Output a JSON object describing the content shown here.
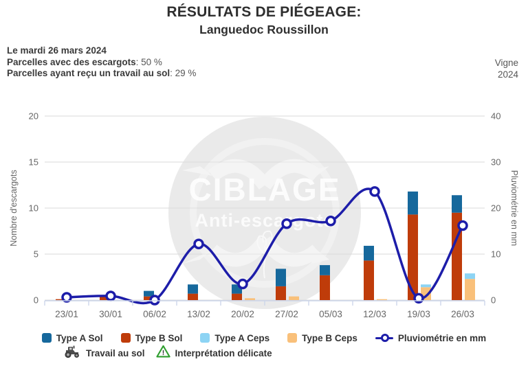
{
  "header": {
    "title": "RÉSULTATS DE PIÉGEAGE:",
    "subtitle": "Languedoc Roussillon",
    "date_line": "Le mardi 26 mars 2024",
    "stat1_label": "Parcelles avec des escargots",
    "stat1_value": ": 50 %",
    "stat2_label": "Parcelles ayant reçu un travail au sol",
    "stat2_value": ": 29 %",
    "context_line1": "Vigne",
    "context_line2": "2024"
  },
  "watermark": {
    "line1": "CIBLAGE",
    "line2": "Anti-escargots"
  },
  "chart_data": {
    "type": "bar",
    "subtype": "stacked-columns-with-line",
    "categories": [
      "23/01",
      "30/01",
      "06/02",
      "13/02",
      "20/02",
      "27/02",
      "05/03",
      "12/03",
      "19/03",
      "26/03"
    ],
    "series": [
      {
        "name": "Type A Sol",
        "type": "column",
        "stack": "sol",
        "color": "#16689c",
        "values": [
          0,
          0,
          0.6,
          1.0,
          1.0,
          1.9,
          1.1,
          1.6,
          2.5,
          1.9
        ]
      },
      {
        "name": "Type B Sol",
        "type": "column",
        "stack": "sol",
        "color": "#bf3c0a",
        "values": [
          0.1,
          0.5,
          0.4,
          0.7,
          0.7,
          1.5,
          2.7,
          4.3,
          9.3,
          9.5
        ]
      },
      {
        "name": "Type A Ceps",
        "type": "column",
        "stack": "ceps",
        "color": "#8dd4f4",
        "values": [
          0,
          0,
          0,
          0,
          0,
          0,
          0,
          0,
          0.3,
          0.6
        ]
      },
      {
        "name": "Type B Ceps",
        "type": "column",
        "stack": "ceps",
        "color": "#f9c07a",
        "values": [
          0,
          0,
          0,
          0,
          0.2,
          0.4,
          0,
          0.1,
          1.4,
          2.3
        ]
      },
      {
        "name": "Pluviométrie en mm",
        "type": "line",
        "axis": "right",
        "color": "#1d1da9",
        "values": [
          0.6,
          0.9,
          0,
          12.2,
          3.5,
          16.6,
          17.2,
          23.6,
          0.4,
          16.2
        ]
      }
    ],
    "ylabel_left": "Nombre d'escargots",
    "ylabel_right": "Pluviométrie en mm",
    "yticks_left": [
      0,
      5,
      10,
      15,
      20
    ],
    "yticks_right": [
      0,
      10,
      20,
      30,
      40
    ],
    "ylim_left": [
      0,
      20
    ],
    "ylim_right": [
      0,
      40
    ],
    "grid": true,
    "legend_position": "bottom",
    "colors": {
      "grid": "#d9d9d9",
      "axis": "#ccd6eb",
      "tick_label": "#666666",
      "axis_title": "#666666"
    }
  },
  "legend_extra": {
    "tractor_label": "Travail au sol",
    "warning_label": "Interprétation délicate"
  }
}
